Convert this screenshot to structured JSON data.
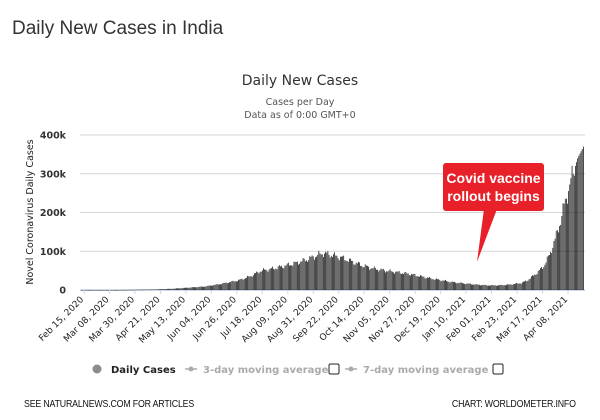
{
  "page": {
    "title": "Daily New Cases in India",
    "footer_left": "SEE NATURALNEWS.COM FOR ARTICLES",
    "footer_right": "CHART: WORLDOMETER.INFO"
  },
  "callout": {
    "line1": "Covid vaccine",
    "line2": "rollout begins",
    "color": "#e8202a"
  },
  "legend": {
    "items": [
      {
        "label": "Daily Cases",
        "icon": "circle-marker-icon",
        "active": true
      },
      {
        "label": "3-day moving average",
        "icon": "line-marker-icon",
        "active": false,
        "checkbox": false
      },
      {
        "label": "7-day moving average",
        "icon": "line-marker-icon",
        "active": false,
        "checkbox": false
      }
    ]
  },
  "chart_data": {
    "type": "bar",
    "title": "Daily New Cases",
    "subtitle_line1": "Cases per Day",
    "subtitle_line2": "Data as of 0:00 GMT+0",
    "ylabel": "Novel Coronavirus Daily Cases",
    "xlabel": "",
    "ylim": [
      0,
      400000
    ],
    "yticks": [
      0,
      100000,
      200000,
      300000,
      400000
    ],
    "ytick_labels": [
      "0",
      "100k",
      "200k",
      "300k",
      "400k"
    ],
    "xtick_labels": [
      "Feb 15, 2020",
      "Mar 08, 2020",
      "Mar 30, 2020",
      "Apr 21, 2020",
      "May 13, 2020",
      "Jun 04, 2020",
      "Jun 26, 2020",
      "Jul 18, 2020",
      "Aug 09, 2020",
      "Aug 31, 2020",
      "Sep 22, 2020",
      "Oct 14, 2020",
      "Nov 05, 2020",
      "Nov 27, 2020",
      "Dec 19, 2020",
      "Jan 10, 2021",
      "Feb 01, 2021",
      "Feb 23, 2021",
      "Mar 17, 2021",
      "Apr 08, 2021"
    ],
    "grid": true,
    "legend_position": "bottom",
    "bar_color": "#000000",
    "series": [
      {
        "name": "Daily Cases",
        "start_date": "Feb 15, 2020",
        "interval_days": 1,
        "anchor_values": [
          [
            0,
            0
          ],
          [
            35,
            50
          ],
          [
            50,
            800
          ],
          [
            65,
            1500
          ],
          [
            80,
            3000
          ],
          [
            95,
            6000
          ],
          [
            110,
            9000
          ],
          [
            125,
            16000
          ],
          [
            140,
            25000
          ],
          [
            150,
            35000
          ],
          [
            160,
            50000
          ],
          [
            170,
            55000
          ],
          [
            180,
            62000
          ],
          [
            190,
            69000
          ],
          [
            200,
            78000
          ],
          [
            210,
            90000
          ],
          [
            215,
            95000
          ],
          [
            220,
            92000
          ],
          [
            230,
            85000
          ],
          [
            240,
            74000
          ],
          [
            250,
            63000
          ],
          [
            260,
            55000
          ],
          [
            270,
            50000
          ],
          [
            280,
            46000
          ],
          [
            290,
            42000
          ],
          [
            300,
            36000
          ],
          [
            310,
            30000
          ],
          [
            320,
            25000
          ],
          [
            330,
            20000
          ],
          [
            340,
            17000
          ],
          [
            350,
            14000
          ],
          [
            360,
            12000
          ],
          [
            370,
            12000
          ],
          [
            380,
            14000
          ],
          [
            390,
            18000
          ],
          [
            395,
            24000
          ],
          [
            400,
            35000
          ],
          [
            405,
            47000
          ],
          [
            410,
            62000
          ],
          [
            415,
            90000
          ],
          [
            420,
            130000
          ],
          [
            425,
            180000
          ],
          [
            430,
            240000
          ],
          [
            435,
            290000
          ],
          [
            440,
            340000
          ],
          [
            445,
            370000
          ]
        ]
      }
    ]
  }
}
